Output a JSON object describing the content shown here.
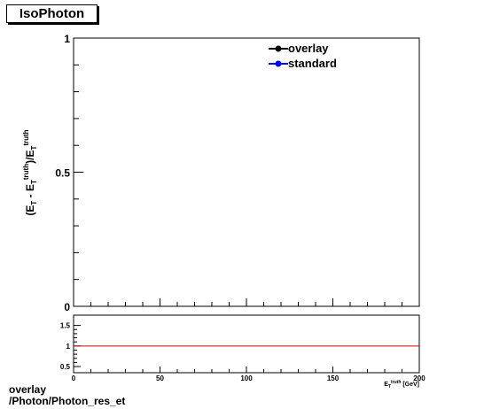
{
  "title": "IsoPhoton",
  "footer": {
    "line1": "overlay",
    "line2": "/Photon/Photon_res_et"
  },
  "chart_data": [
    {
      "type": "line",
      "ylabel": "(E_T - E_T^truth)/E_T^truth",
      "ylim": [
        0,
        1
      ],
      "xlim": [
        0,
        200
      ],
      "yticks": [
        {
          "v": 0,
          "label": "0"
        },
        {
          "v": 0.5,
          "label": "0.5"
        },
        {
          "v": 1,
          "label": "1"
        }
      ],
      "legend": {
        "placement": "top-right",
        "entries": [
          {
            "name": "overlay",
            "color": "#000000"
          },
          {
            "name": "standard",
            "color": "#0000ff"
          }
        ]
      },
      "series": []
    },
    {
      "type": "line",
      "xlabel": "E_T^truth [GeV]",
      "xlim": [
        0,
        200
      ],
      "ylim": [
        0.35,
        1.75
      ],
      "xticks": [
        {
          "v": 0,
          "label": "0"
        },
        {
          "v": 50,
          "label": "50"
        },
        {
          "v": 100,
          "label": "100"
        },
        {
          "v": 150,
          "label": "150"
        },
        {
          "v": 200,
          "label": "200"
        }
      ],
      "yticks": [
        {
          "v": 0.5,
          "label": "0.5"
        },
        {
          "v": 1,
          "label": "1"
        },
        {
          "v": 1.5,
          "label": "1.5"
        }
      ],
      "reference_line": {
        "y": 1,
        "color": "#cc0000"
      }
    }
  ]
}
